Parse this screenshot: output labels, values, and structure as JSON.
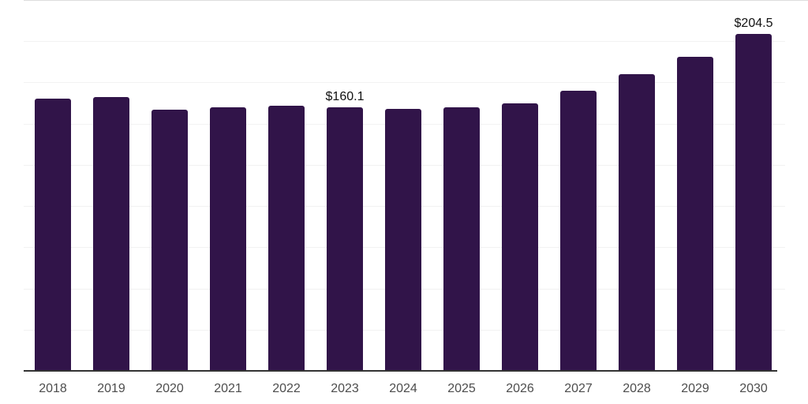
{
  "chart_data": {
    "type": "bar",
    "title": "",
    "xlabel": "",
    "ylabel": "",
    "categories": [
      "2018",
      "2019",
      "2020",
      "2021",
      "2022",
      "2023",
      "2024",
      "2025",
      "2026",
      "2027",
      "2028",
      "2029",
      "2030"
    ],
    "values": [
      165.0,
      166.0,
      158.5,
      159.8,
      161.0,
      160.1,
      158.9,
      159.9,
      162.5,
      169.8,
      180.0,
      190.5,
      204.5
    ],
    "data_labels": [
      {
        "category": "2023",
        "text": "$160.1"
      },
      {
        "category": "2030",
        "text": "$204.5"
      }
    ],
    "ylim": [
      0,
      225
    ],
    "gridline_step": 25,
    "grid": "horizontal",
    "legend": "none",
    "currency_prefix": "$"
  },
  "colors": {
    "bar": "#311449",
    "axis_line": "#333333",
    "gridline": "#f2f2f2",
    "top_gridline": "#dddddd",
    "tick_label": "#4d4d4d",
    "data_label": "#111111",
    "background": "#ffffff"
  }
}
